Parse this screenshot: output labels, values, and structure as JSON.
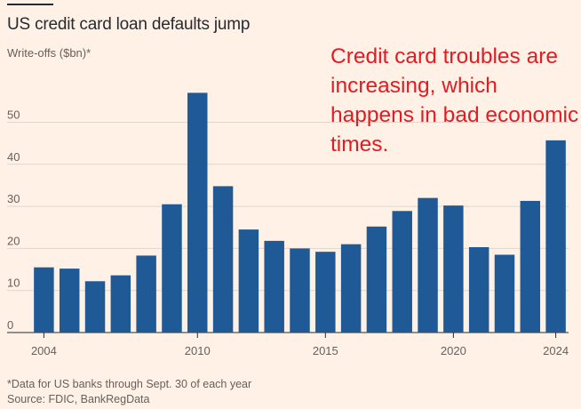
{
  "title": "US credit card loan defaults jump",
  "annotation": "Credit card troubles are increasing, which happens in bad economic times.",
  "footnote": "*Data for US banks through Sept. 30 of each year",
  "source": "Source: FDIC, BankRegData",
  "colors": {
    "background": "#fff1e5",
    "bar": "#1f5a96",
    "grid": "#e0d6cc",
    "annotation": "#e31b23"
  },
  "chart_data": {
    "type": "bar",
    "title": "US credit card loan defaults jump",
    "ylabel": "Write-offs ($bn)*",
    "xlabel": "",
    "categories": [
      "2004",
      "2005",
      "2006",
      "2007",
      "2008",
      "2009",
      "2010",
      "2011",
      "2012",
      "2013",
      "2014",
      "2015",
      "2016",
      "2017",
      "2018",
      "2019",
      "2020",
      "2021",
      "2022",
      "2023",
      "2024"
    ],
    "values": [
      15.5,
      15.2,
      12.2,
      13.6,
      18.3,
      30.5,
      57.0,
      34.8,
      24.5,
      21.8,
      20.0,
      19.2,
      21.0,
      25.2,
      28.9,
      32.0,
      30.2,
      20.3,
      18.5,
      31.3,
      45.7
    ],
    "ylim": [
      0,
      57
    ],
    "yticks": [
      0,
      10,
      20,
      30,
      40,
      50
    ],
    "xtick_labels": [
      "2004",
      "2010",
      "2015",
      "2020",
      "2024"
    ],
    "grid": true
  }
}
